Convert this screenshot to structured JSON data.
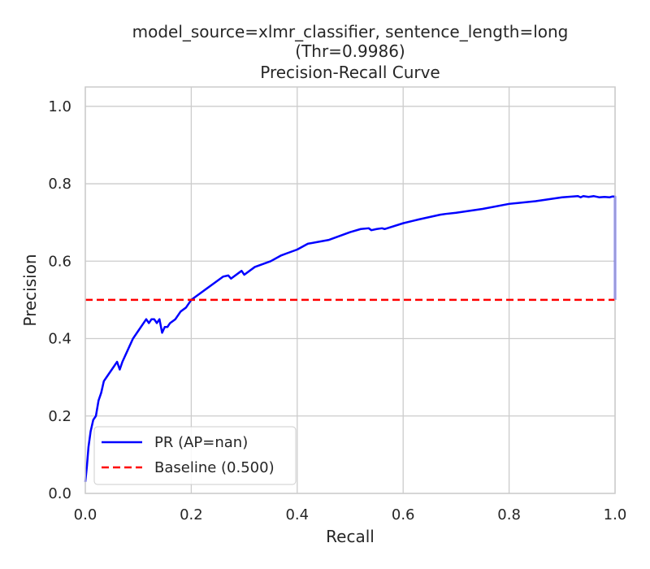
{
  "chart_data": {
    "type": "line",
    "title_lines": [
      "model_source=xlmr_classifier, sentence_length=long",
      "(Thr=0.9986)",
      "Precision-Recall Curve"
    ],
    "xlabel": "Recall",
    "ylabel": "Precision",
    "xlim": [
      0.0,
      1.0
    ],
    "ylim": [
      0.0,
      1.05
    ],
    "x_ticks": [
      0.0,
      0.2,
      0.4,
      0.6,
      0.8,
      1.0
    ],
    "x_tick_labels": [
      "0.0",
      "0.2",
      "0.4",
      "0.6",
      "0.8",
      "1.0"
    ],
    "y_ticks": [
      0.0,
      0.2,
      0.4,
      0.6,
      0.8,
      1.0
    ],
    "y_tick_labels": [
      "0.0",
      "0.2",
      "0.4",
      "0.6",
      "0.8",
      "1.0"
    ],
    "grid": true,
    "legend_position": "lower-left",
    "series": [
      {
        "name": "PR (AP=nan)",
        "color": "#0000ff",
        "line_style": "solid",
        "x": [
          0.0,
          0.003,
          0.006,
          0.01,
          0.015,
          0.02,
          0.025,
          0.03,
          0.035,
          0.04,
          0.045,
          0.05,
          0.055,
          0.06,
          0.065,
          0.07,
          0.08,
          0.09,
          0.1,
          0.11,
          0.115,
          0.12,
          0.125,
          0.13,
          0.135,
          0.14,
          0.145,
          0.15,
          0.155,
          0.16,
          0.17,
          0.18,
          0.19,
          0.2,
          0.22,
          0.24,
          0.26,
          0.27,
          0.275,
          0.28,
          0.29,
          0.295,
          0.3,
          0.32,
          0.33,
          0.35,
          0.37,
          0.38,
          0.4,
          0.42,
          0.44,
          0.46,
          0.48,
          0.5,
          0.52,
          0.535,
          0.54,
          0.55,
          0.56,
          0.565,
          0.6,
          0.63,
          0.67,
          0.68,
          0.7,
          0.75,
          0.8,
          0.85,
          0.9,
          0.93,
          0.935,
          0.94,
          0.95,
          0.96,
          0.97,
          0.98,
          0.99,
          0.995,
          1.0,
          1.0
        ],
        "y": [
          0.03,
          0.07,
          0.12,
          0.16,
          0.19,
          0.2,
          0.24,
          0.26,
          0.29,
          0.3,
          0.31,
          0.32,
          0.33,
          0.34,
          0.32,
          0.34,
          0.37,
          0.4,
          0.42,
          0.44,
          0.45,
          0.44,
          0.45,
          0.45,
          0.44,
          0.45,
          0.415,
          0.43,
          0.43,
          0.44,
          0.45,
          0.47,
          0.48,
          0.5,
          0.52,
          0.54,
          0.56,
          0.563,
          0.555,
          0.56,
          0.57,
          0.575,
          0.565,
          0.585,
          0.59,
          0.6,
          0.615,
          0.62,
          0.63,
          0.645,
          0.65,
          0.655,
          0.665,
          0.675,
          0.683,
          0.685,
          0.68,
          0.683,
          0.685,
          0.683,
          0.698,
          0.708,
          0.72,
          0.722,
          0.725,
          0.735,
          0.748,
          0.755,
          0.765,
          0.768,
          0.765,
          0.768,
          0.766,
          0.768,
          0.765,
          0.766,
          0.765,
          0.767,
          0.767,
          0.5
        ]
      },
      {
        "name": "Baseline (0.500)",
        "color": "#ff0000",
        "line_style": "dashed",
        "x": [
          0.0,
          1.0
        ],
        "y": [
          0.5,
          0.5
        ]
      }
    ]
  }
}
